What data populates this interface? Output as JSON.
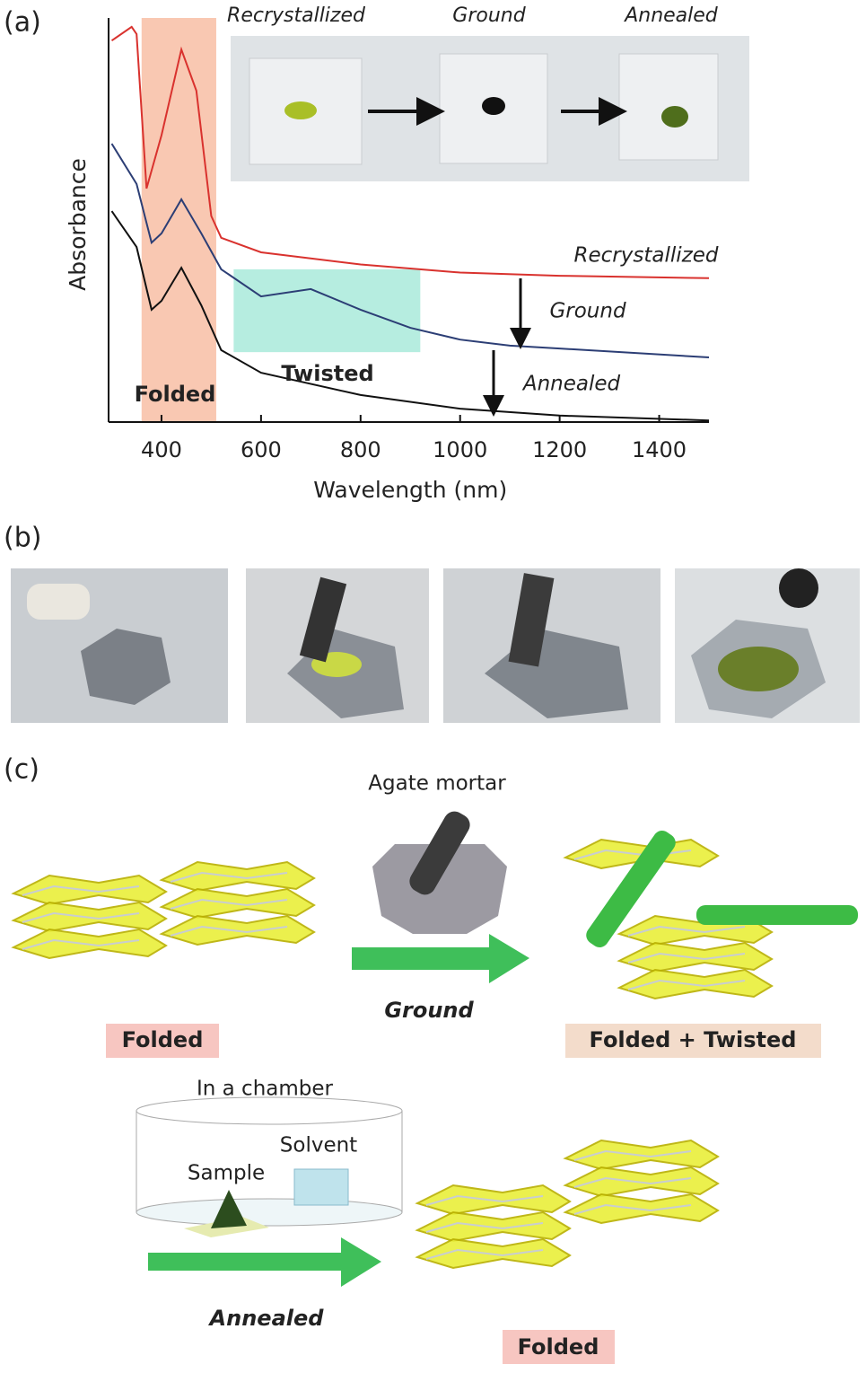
{
  "panel_labels": [
    "(a)",
    "(b)",
    "(c)"
  ],
  "chart_data": {
    "type": "line",
    "xlabel": "Wavelength (nm)",
    "ylabel": "Absorbance",
    "xlim": [
      300,
      1500
    ],
    "ylim": [
      0,
      1
    ],
    "xticks": [
      400,
      600,
      800,
      1000,
      1200,
      1400
    ],
    "series": [
      {
        "name": "Recrystallized",
        "color": "#d9322e",
        "x": [
          300,
          340,
          350,
          370,
          400,
          440,
          470,
          500,
          520,
          600,
          800,
          1000,
          1200,
          1500
        ],
        "values": [
          0.944,
          0.978,
          0.96,
          0.578,
          0.71,
          0.922,
          0.82,
          0.51,
          0.456,
          0.42,
          0.39,
          0.37,
          0.362,
          0.356
        ]
      },
      {
        "name": "Ground",
        "color": "#2c3e75",
        "x": [
          300,
          350,
          380,
          400,
          440,
          480,
          520,
          600,
          700,
          800,
          900,
          1000,
          1100,
          1200,
          1500
        ],
        "values": [
          0.689,
          0.589,
          0.444,
          0.467,
          0.551,
          0.467,
          0.378,
          0.311,
          0.329,
          0.278,
          0.233,
          0.204,
          0.189,
          0.182,
          0.16
        ]
      },
      {
        "name": "Annealed",
        "color": "#111111",
        "x": [
          300,
          350,
          380,
          400,
          440,
          480,
          520,
          600,
          800,
          1000,
          1200,
          1500
        ],
        "values": [
          0.522,
          0.433,
          0.278,
          0.3,
          0.382,
          0.289,
          0.178,
          0.122,
          0.067,
          0.033,
          0.016,
          0.004
        ]
      }
    ],
    "regions": [
      {
        "label": "Folded",
        "color": "#f9c8b2",
        "xlim": [
          360,
          510
        ]
      },
      {
        "label": "Twisted",
        "color": "#b6ede0",
        "xlim": [
          545,
          920
        ],
        "ylim": [
          0.173,
          0.378
        ]
      }
    ],
    "inset_labels": [
      "Recrystallized",
      "Ground",
      "Annealed"
    ]
  },
  "panel_c": {
    "mortar": "Agate mortar",
    "ground": "Ground",
    "folded": "Folded",
    "folded_twisted": "Folded + Twisted",
    "chamber": "In a chamber",
    "solvent": "Solvent",
    "sample": "Sample",
    "annealed": "Annealed",
    "folded_final": "Folded"
  }
}
